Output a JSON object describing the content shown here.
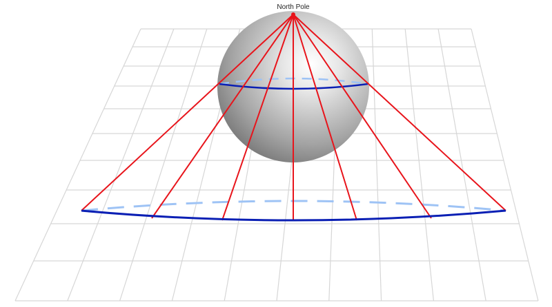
{
  "diagram": {
    "pole_label": "North Pole",
    "colors": {
      "grid": "#d6d6d6",
      "projection_lines": "#e8141b",
      "circle_front": "#0a1fb4",
      "circle_back": "#9ec3f5",
      "pole_point": "#e8141b",
      "sphere_light": "#ffffff",
      "sphere_dark": "#6f6f6f"
    },
    "projection_line_count": 7,
    "elements": [
      "grid-plane",
      "sphere",
      "latitude-circle",
      "projected-circle",
      "projection-lines"
    ]
  }
}
